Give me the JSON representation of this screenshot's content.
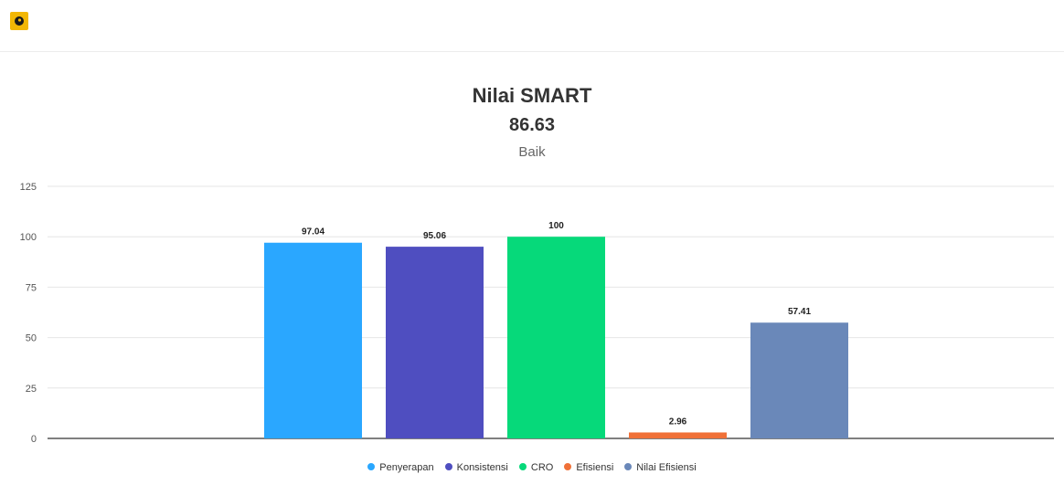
{
  "header": {
    "logo_icon": "app-logo-icon"
  },
  "chart_data": {
    "type": "bar",
    "title": "Nilai SMART",
    "subtitle_value": "86.63",
    "subtitle_status": "Baik",
    "categories": [
      "Penyerapan",
      "Konsistensi",
      "CRO",
      "Efisiensi",
      "Nilai Efisiensi"
    ],
    "values": [
      97.04,
      95.06,
      100,
      2.96,
      57.41
    ],
    "data_labels": [
      "97.04",
      "95.06",
      "100",
      "2.96",
      "57.41"
    ],
    "colors": [
      "#2aa7ff",
      "#4f4ec0",
      "#06d97a",
      "#f07138",
      "#6a88b9"
    ],
    "ylim": [
      0,
      125
    ],
    "yticks": [
      0,
      25,
      50,
      75,
      100,
      125
    ],
    "ytick_labels": [
      "0",
      "25",
      "50",
      "75",
      "100",
      "125"
    ],
    "grid": true,
    "legend_position": "bottom",
    "xlabel": "",
    "ylabel": ""
  }
}
